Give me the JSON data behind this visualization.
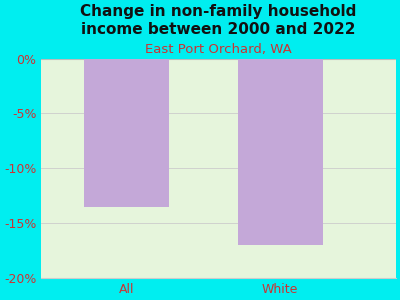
{
  "title": "Change in non-family household\nincome between 2000 and 2022",
  "subtitle": "East Port Orchard, WA",
  "categories": [
    "All",
    "White"
  ],
  "values": [
    -13.5,
    -17.0
  ],
  "bar_color": "#c4a8d8",
  "background_color": "#00eef0",
  "plot_bg_color": "#e6f5dc",
  "plot_bg_right_color": "#f0f0f0",
  "title_color": "#111111",
  "subtitle_color": "#cc3333",
  "tick_label_color": "#cc3333",
  "axis_label_color": "#cc3333",
  "ylim": [
    -20,
    0
  ],
  "yticks": [
    0,
    -5,
    -10,
    -15,
    -20
  ],
  "title_fontsize": 11.0,
  "subtitle_fontsize": 9.5,
  "tick_fontsize": 9,
  "bar_width": 0.55
}
